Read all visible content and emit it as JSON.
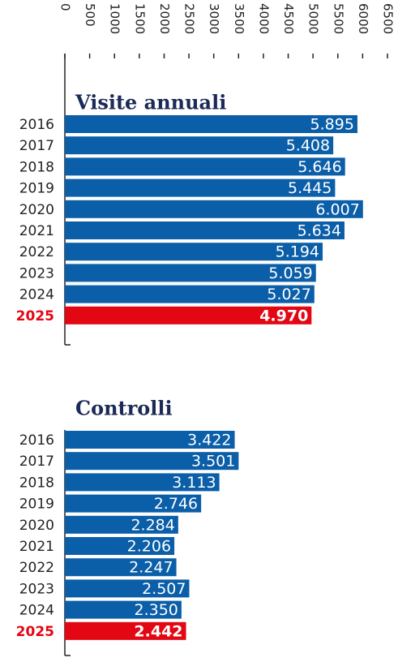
{
  "chart_data": [
    {
      "type": "bar",
      "orientation": "horizontal",
      "title": "Visite annuali",
      "categories": [
        "2016",
        "2017",
        "2018",
        "2019",
        "2020",
        "2021",
        "2022",
        "2023",
        "2024",
        "2025"
      ],
      "values": [
        5895,
        5408,
        5646,
        5445,
        6007,
        5634,
        5194,
        5059,
        5027,
        4970
      ],
      "value_labels": [
        "5.895",
        "5.408",
        "5.646",
        "5.445",
        "6.007",
        "5.634",
        "5.194",
        "5.059",
        "5.027",
        "4.970"
      ],
      "color": "#0b5ea8",
      "colors": [
        "#0b5ea8",
        "#0b5ea8",
        "#0b5ea8",
        "#0b5ea8",
        "#0b5ea8",
        "#0b5ea8",
        "#0b5ea8",
        "#0b5ea8",
        "#0b5ea8",
        "#e30613"
      ],
      "xlim": [
        0,
        6500
      ],
      "xticks": [
        0,
        500,
        1000,
        1500,
        2000,
        2500,
        3000,
        3500,
        4000,
        4500,
        5000,
        5500,
        6000,
        6500
      ]
    },
    {
      "type": "bar",
      "orientation": "horizontal",
      "title": "Controlli",
      "categories": [
        "2016",
        "2017",
        "2018",
        "2019",
        "2020",
        "2021",
        "2022",
        "2023",
        "2024",
        "2025"
      ],
      "values": [
        3422,
        3501,
        3113,
        2746,
        2284,
        2206,
        2247,
        2507,
        2350,
        2442
      ],
      "value_labels": [
        "3.422",
        "3.501",
        "3.113",
        "2.746",
        "2.284",
        "2.206",
        "2.247",
        "2.507",
        "2.350",
        "2.442"
      ],
      "color": "#0b5ea8",
      "colors": [
        "#0b5ea8",
        "#0b5ea8",
        "#0b5ea8",
        "#0b5ea8",
        "#0b5ea8",
        "#0b5ea8",
        "#0b5ea8",
        "#0b5ea8",
        "#0b5ea8",
        "#e30613"
      ],
      "xlim": [
        0,
        6500
      ]
    }
  ]
}
